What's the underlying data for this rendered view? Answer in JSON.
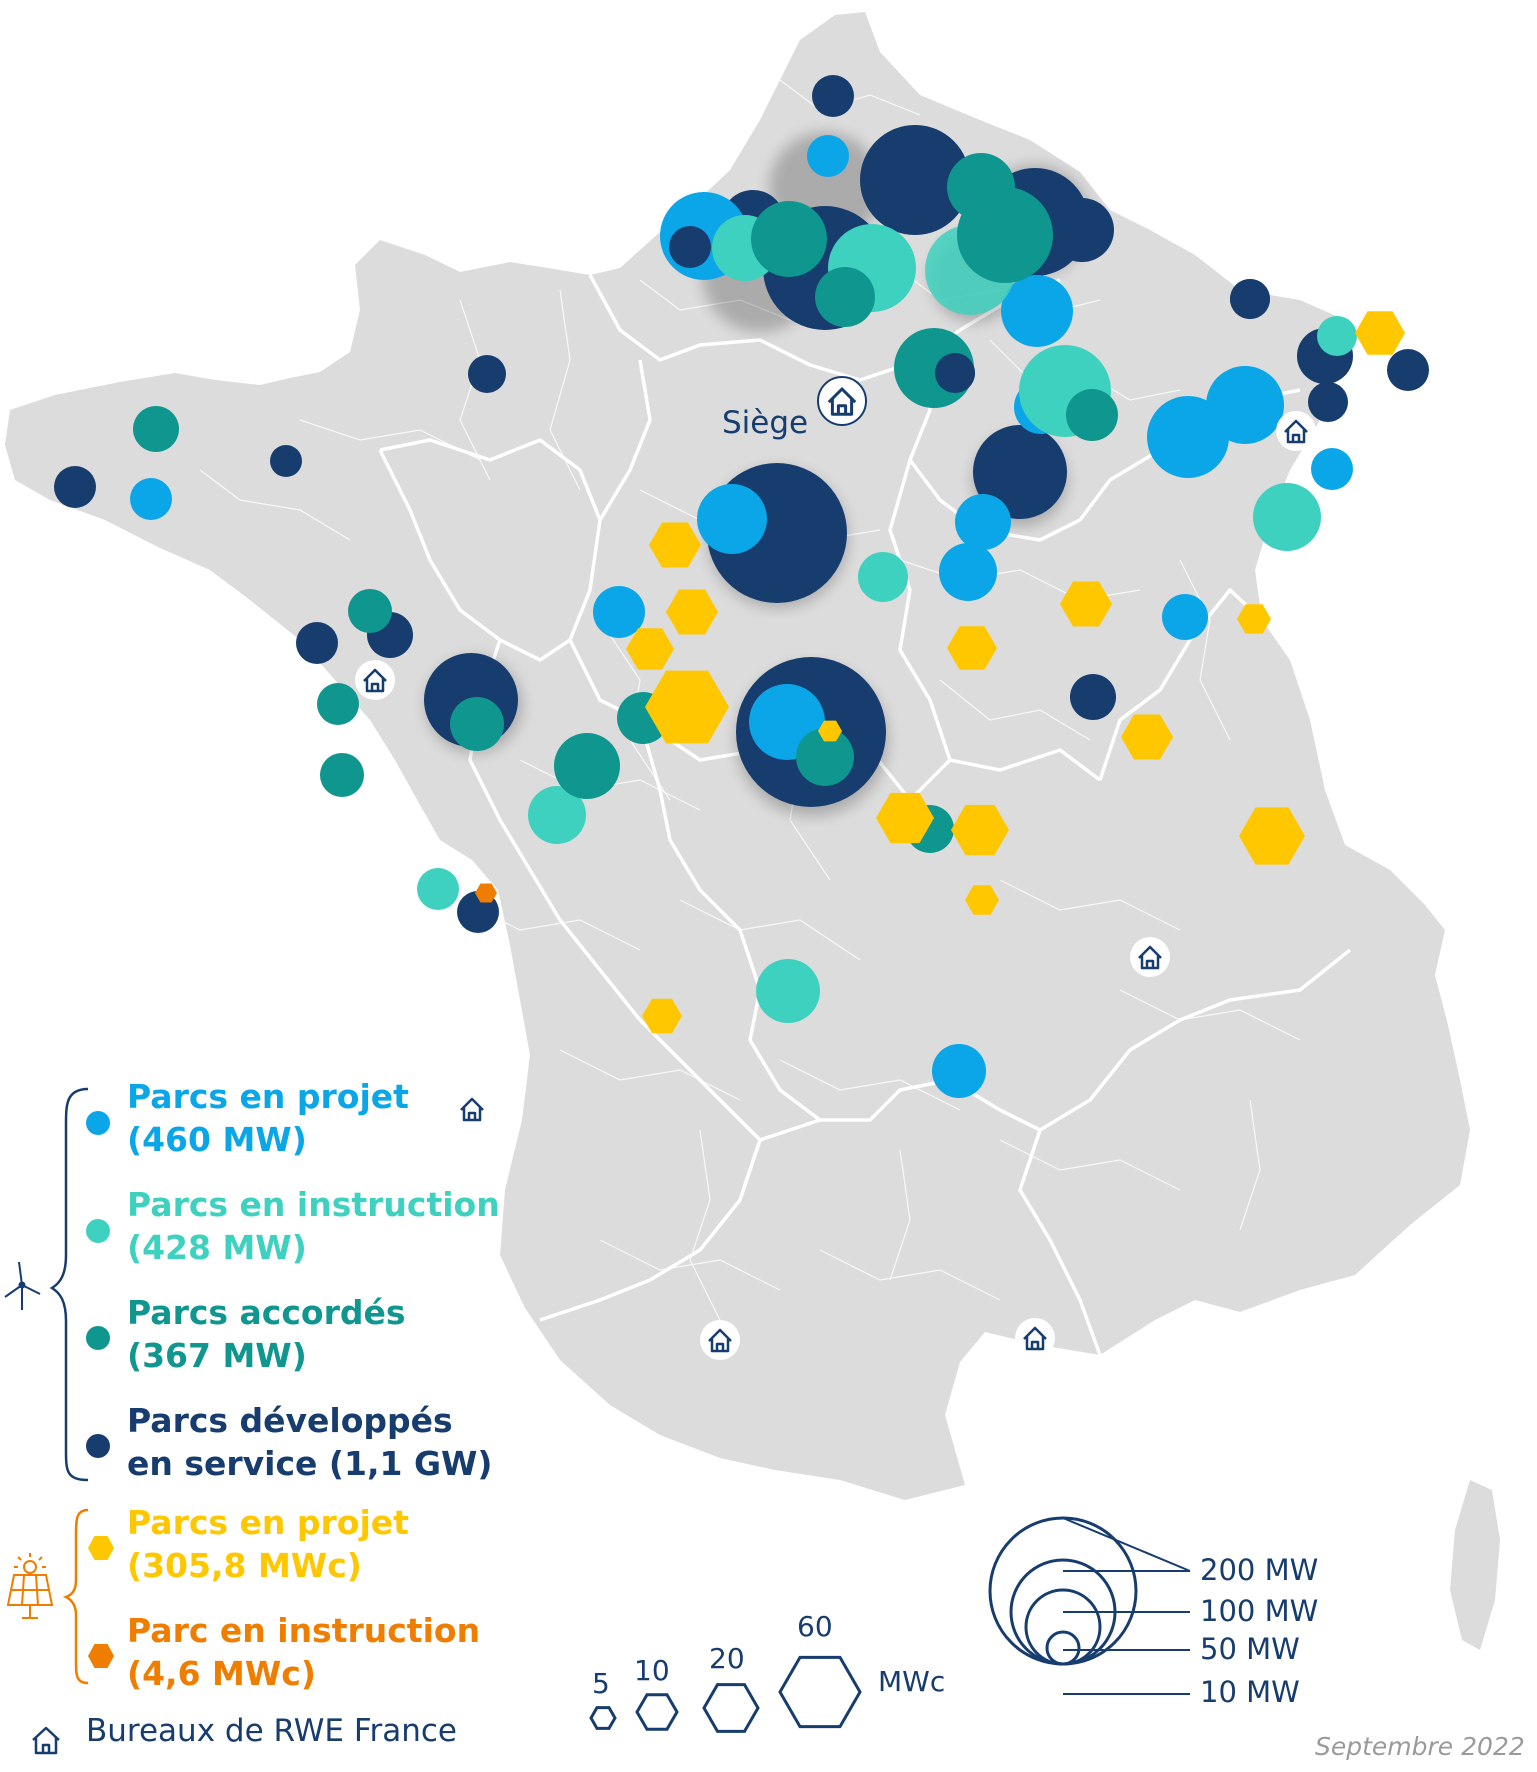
{
  "colors": {
    "land": "#dcdcdc",
    "border": "#ffffff",
    "projet": "#0aa6e8",
    "instruction": "#3fd1bf",
    "accordes": "#0f968e",
    "service": "#173c6e",
    "solar_projet": "#ffc700",
    "solar_instruction": "#ef7d00",
    "navy": "#173c6e",
    "credit": "#9a9a9a"
  },
  "map": {
    "hq_label": "Siège",
    "office_icon": "house-icon"
  },
  "legend": {
    "wind_icon": "wind-turbine-icon",
    "solar_icon": "solar-panel-icon",
    "wind": [
      {
        "line1": "Parcs en projet",
        "line2": "(460 MW)"
      },
      {
        "line1": "Parcs en instruction",
        "line2": "(428 MW)"
      },
      {
        "line1": "Parcs accordés",
        "line2": "(367 MW)"
      },
      {
        "line1": "Parcs développés",
        "line2": "en service (1,1 GW)"
      }
    ],
    "solar": [
      {
        "line1": "Parcs en projet",
        "line2": "(305,8 MWc)"
      },
      {
        "line1": "Parc en instruction",
        "line2": "(4,6 MWc)"
      }
    ],
    "offices": "Bureaux de RWE France"
  },
  "scale_hex": {
    "labels": [
      "5",
      "10",
      "20",
      "60"
    ],
    "unit": "MWc"
  },
  "scale_circles": {
    "labels": [
      "200 MW",
      "100 MW",
      "50 MW",
      "10 MW"
    ]
  },
  "credit": "Septembre 2022"
}
